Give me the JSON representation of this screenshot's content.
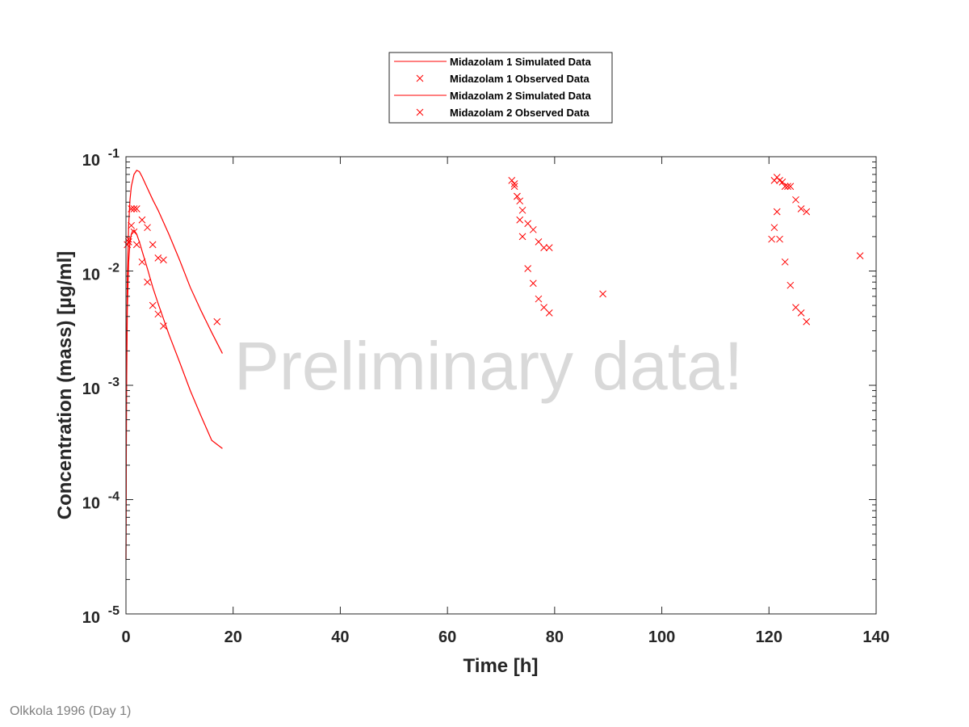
{
  "footnote": "Olkkola 1996 (Day 1)",
  "watermark": "Preliminary data!",
  "colors": {
    "series": "#ff0000",
    "axis": "#262626",
    "watermark": "#d9d9d9",
    "footnote": "#808080"
  },
  "chart_data": {
    "type": "line",
    "xlabel": "Time [h]",
    "ylabel": "Concentration (mass) [µg/ml]",
    "xlim": [
      0,
      140
    ],
    "ylim": [
      1e-05,
      0.1
    ],
    "yscale": "log",
    "xticks": [
      0,
      20,
      40,
      60,
      80,
      100,
      120,
      140
    ],
    "xtick_labels": [
      "0",
      "20",
      "40",
      "60",
      "80",
      "100",
      "120",
      "140"
    ],
    "yticks": [
      {
        "base": "10",
        "exp": "-5",
        "value": 1e-05
      },
      {
        "base": "10",
        "exp": "-4",
        "value": 0.0001
      },
      {
        "base": "10",
        "exp": "-3",
        "value": 0.001
      },
      {
        "base": "10",
        "exp": "-2",
        "value": 0.01
      },
      {
        "base": "10",
        "exp": "-1",
        "value": 0.1
      }
    ],
    "grid": false,
    "legend_position": "top-center",
    "series": [
      {
        "name": "Midazolam 1 Simulated Data",
        "kind": "line",
        "color": "#ff0000",
        "x": [
          0,
          0.1,
          0.25,
          0.5,
          0.75,
          1,
          1.5,
          2,
          2.5,
          3,
          4,
          5,
          6,
          8,
          10,
          12,
          14,
          16,
          18
        ],
        "y": [
          3e-05,
          0.0012,
          0.0085,
          0.025,
          0.042,
          0.055,
          0.07,
          0.076,
          0.074,
          0.067,
          0.053,
          0.042,
          0.034,
          0.021,
          0.0125,
          0.0072,
          0.0045,
          0.0029,
          0.0019
        ]
      },
      {
        "name": "Midazolam 1 Observed Data",
        "kind": "marker",
        "color": "#ff0000",
        "x": [
          0.5,
          1,
          1.5,
          2,
          3,
          4,
          5,
          6,
          7,
          17,
          72,
          72.5,
          73,
          73.5,
          74,
          75,
          76,
          77,
          78,
          79,
          89,
          121,
          121.5,
          122,
          122.5,
          123,
          123.5,
          124,
          125,
          126,
          127,
          137
        ],
        "y": [
          0.019,
          0.035,
          0.035,
          0.035,
          0.028,
          0.024,
          0.017,
          0.013,
          0.0125,
          0.0036,
          0.062,
          0.055,
          0.045,
          0.041,
          0.034,
          0.026,
          0.023,
          0.018,
          0.016,
          0.016,
          0.0063,
          0.062,
          0.066,
          0.062,
          0.06,
          0.055,
          0.055,
          0.055,
          0.042,
          0.035,
          0.033,
          0.0136
        ]
      },
      {
        "name": "Midazolam 2 Simulated Data",
        "kind": "line",
        "color": "#ff0000",
        "x": [
          0,
          0.1,
          0.25,
          0.5,
          0.75,
          1,
          1.25,
          1.5,
          2,
          2.5,
          3,
          4,
          5,
          6,
          8,
          10,
          12,
          14,
          16,
          18
        ],
        "y": [
          3e-05,
          0.0008,
          0.0045,
          0.012,
          0.018,
          0.021,
          0.0225,
          0.0228,
          0.021,
          0.018,
          0.015,
          0.0105,
          0.0072,
          0.0052,
          0.0028,
          0.0016,
          0.0009,
          0.00054,
          0.00033,
          0.00028
        ]
      },
      {
        "name": "Midazolam 2 Observed Data",
        "kind": "marker",
        "color": "#ff0000",
        "x": [
          0.25,
          0.5,
          1,
          1.5,
          2,
          3,
          4,
          5,
          6,
          7,
          72.5,
          73,
          73.5,
          74,
          75,
          76,
          77,
          78,
          79,
          120.5,
          121,
          121.5,
          122,
          123,
          124,
          125,
          126,
          127
        ],
        "y": [
          0.017,
          0.018,
          0.025,
          0.022,
          0.017,
          0.012,
          0.008,
          0.005,
          0.0042,
          0.0033,
          0.058,
          0.045,
          0.028,
          0.02,
          0.0105,
          0.0078,
          0.0057,
          0.0048,
          0.0043,
          0.019,
          0.024,
          0.033,
          0.019,
          0.012,
          0.0075,
          0.0048,
          0.0043,
          0.0036
        ]
      }
    ]
  }
}
